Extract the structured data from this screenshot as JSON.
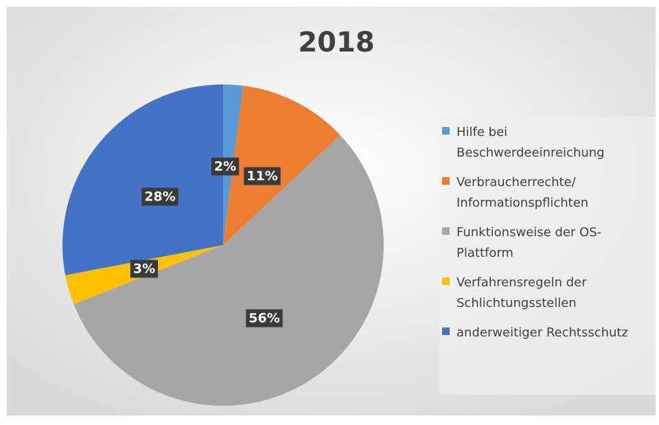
{
  "chart_data": {
    "type": "pie",
    "title": "2018",
    "categories": [
      "Hilfe bei Beschwerdeeinreichung",
      "Verbraucherrechte/ Informationspflichten",
      "Funktionsweise der OS-Plattform",
      "Verfahrensregeln der Schlichtungsstellen",
      "anderweitiger Rechtsschutz"
    ],
    "values": [
      2,
      11,
      56,
      3,
      28
    ],
    "value_labels": [
      "2%",
      "11%",
      "56%",
      "3%",
      "28%"
    ],
    "colors": [
      "#5b9bd5",
      "#ed7d31",
      "#a5a5a5",
      "#ffc000",
      "#4472c4"
    ],
    "legend": "right"
  }
}
